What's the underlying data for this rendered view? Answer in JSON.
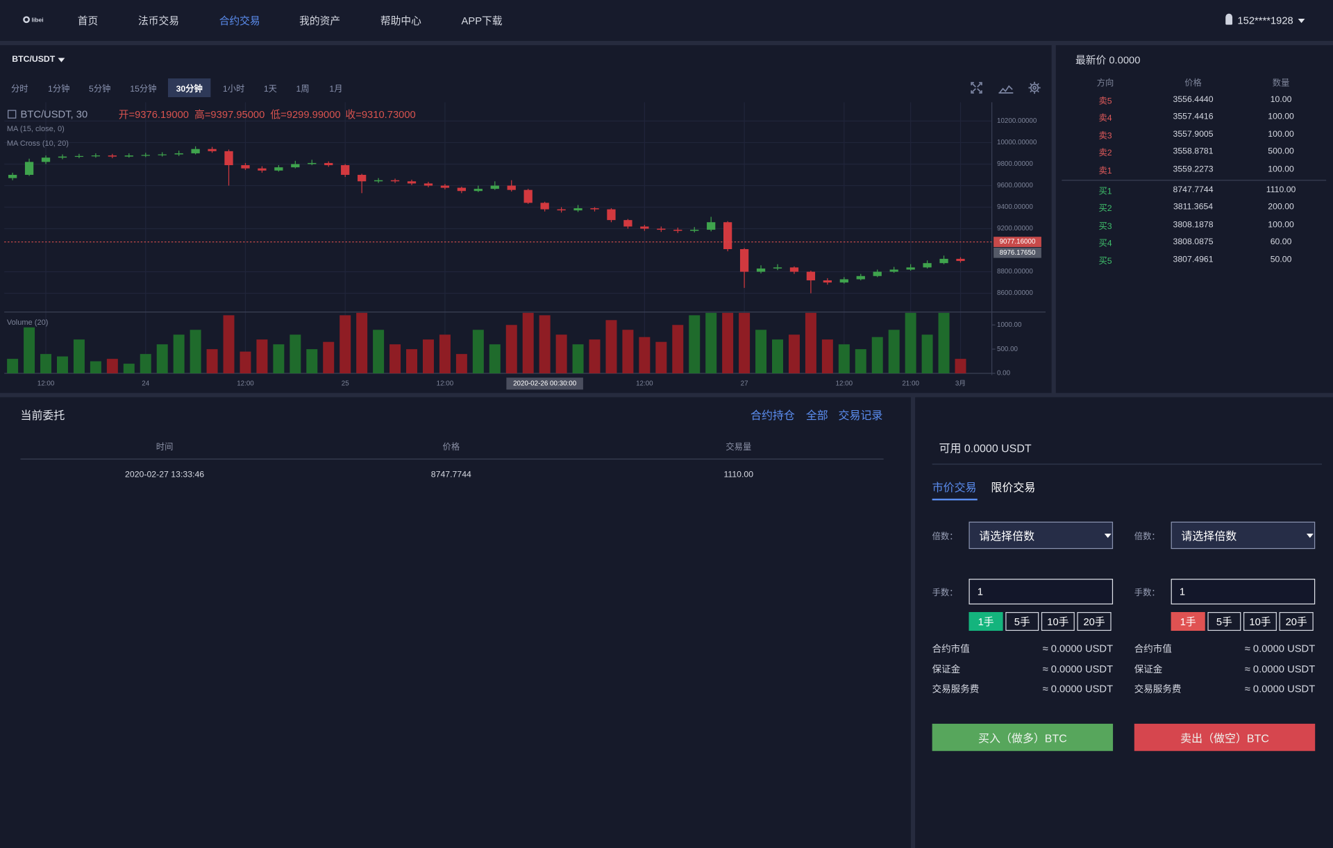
{
  "nav": {
    "logo": "libei",
    "items": [
      "首页",
      "法币交易",
      "合约交易",
      "我的资产",
      "帮助中心",
      "APP下载"
    ],
    "active": 2,
    "user": "152****1928"
  },
  "chart": {
    "pair": "BTC/USDT",
    "intervals": [
      "分时",
      "1分钟",
      "5分钟",
      "15分钟",
      "30分钟",
      "1小时",
      "1天",
      "1周",
      "1月"
    ],
    "active_interval": 4,
    "legend_title": "BTC/USDT, 30",
    "ohlc": [
      "开=9376.19000",
      "高=9397.95000",
      "低=9299.99000",
      "收=9310.73000"
    ],
    "indicators": [
      "MA (15, close, 0)",
      "MA Cross (10, 20)"
    ],
    "volume_label": "Volume (20)",
    "crosshair_label": "2020-02-26 00:30:00"
  },
  "chart_data": {
    "type": "candlestick",
    "grid": true,
    "categories": [
      null,
      null,
      "12:00",
      null,
      null,
      null,
      null,
      null,
      "24",
      null,
      null,
      null,
      null,
      null,
      "12:00",
      null,
      null,
      null,
      null,
      null,
      "25",
      null,
      null,
      null,
      null,
      null,
      "12:00",
      null,
      null,
      null,
      null,
      null,
      null,
      null,
      null,
      null,
      null,
      null,
      "12:00",
      null,
      null,
      null,
      null,
      null,
      "27",
      null,
      null,
      null,
      null,
      null,
      "12:00",
      null,
      null,
      null,
      "21:00",
      null,
      null,
      "3月"
    ],
    "open": [
      9670,
      9700,
      9820,
      9860,
      9870,
      9875,
      9880,
      9870,
      9880,
      9885,
      9890,
      9900,
      9940,
      9920,
      9790,
      9760,
      9740,
      9770,
      9800,
      9810,
      9790,
      9700,
      9640,
      9650,
      9640,
      9620,
      9600,
      9580,
      9550,
      9570,
      9600,
      9560,
      9440,
      9380,
      9370,
      9390,
      9380,
      9280,
      9220,
      9200,
      9190,
      9180,
      9190,
      9260,
      9010,
      8800,
      8830,
      8840,
      8800,
      8720,
      8700,
      8730,
      8760,
      8800,
      8820,
      8840,
      8880,
      8920
    ],
    "high": [
      9720,
      9850,
      9880,
      9890,
      9895,
      9900,
      9895,
      9900,
      9905,
      9910,
      9925,
      9965,
      9960,
      9935,
      9810,
      9780,
      9790,
      9830,
      9840,
      9825,
      9800,
      9710,
      9670,
      9665,
      9655,
      9635,
      9615,
      9590,
      9600,
      9640,
      9650,
      9570,
      9450,
      9400,
      9420,
      9400,
      9390,
      9290,
      9235,
      9220,
      9210,
      9215,
      9310,
      9270,
      9020,
      8860,
      8870,
      8850,
      8810,
      8740,
      8750,
      8780,
      8820,
      8845,
      8870,
      8905,
      8950,
      8935
    ],
    "low": [
      9650,
      9690,
      9800,
      9845,
      9855,
      9860,
      9855,
      9860,
      9865,
      9870,
      9875,
      9890,
      9905,
      9600,
      9745,
      9720,
      9730,
      9760,
      9790,
      9775,
      9680,
      9530,
      9625,
      9625,
      9605,
      9585,
      9565,
      9530,
      9540,
      9560,
      9545,
      9430,
      9360,
      9350,
      9355,
      9360,
      9260,
      9200,
      9180,
      9170,
      9160,
      9165,
      9175,
      8990,
      8650,
      8785,
      8815,
      8780,
      8600,
      8680,
      8690,
      8720,
      8750,
      8790,
      8810,
      8830,
      8870,
      8885
    ],
    "close": [
      9700,
      9820,
      9860,
      9870,
      9875,
      9880,
      9870,
      9880,
      9885,
      9890,
      9900,
      9940,
      9920,
      9790,
      9760,
      9740,
      9770,
      9800,
      9810,
      9790,
      9700,
      9640,
      9650,
      9640,
      9620,
      9600,
      9580,
      9550,
      9570,
      9600,
      9560,
      9440,
      9380,
      9370,
      9390,
      9380,
      9280,
      9220,
      9200,
      9190,
      9180,
      9190,
      9260,
      9010,
      8800,
      8830,
      8840,
      8800,
      8720,
      8700,
      8730,
      8760,
      8800,
      8820,
      8840,
      8880,
      8920,
      8900
    ],
    "volume": [
      300,
      950,
      400,
      350,
      700,
      250,
      300,
      200,
      400,
      600,
      800,
      900,
      500,
      1200,
      450,
      700,
      600,
      800,
      500,
      650,
      1200,
      1250,
      900,
      600,
      500,
      700,
      800,
      400,
      900,
      600,
      1000,
      1250,
      1200,
      800,
      600,
      700,
      1100,
      900,
      750,
      650,
      1000,
      1200,
      1250,
      1250,
      1250,
      900,
      700,
      800,
      1250,
      700,
      600,
      500,
      750,
      900,
      1250,
      800,
      1250,
      300
    ],
    "up_color": "#3fa34d",
    "down_color": "#d2393f",
    "volume_up_color": "#1f6b2c",
    "volume_down_color": "#8f1d24",
    "ylim": [
      8426,
      10374
    ],
    "yticks": [
      {
        "value": 10200,
        "label": "10200.00000"
      },
      {
        "value": 10000,
        "label": "10000.00000"
      },
      {
        "value": 9800,
        "label": "9800.00000"
      },
      {
        "value": 9600,
        "label": "9600.00000"
      },
      {
        "value": 9400,
        "label": "9400.00000"
      },
      {
        "value": 9200,
        "label": "9200.00000"
      },
      {
        "value": 8800,
        "label": "8800.00000"
      },
      {
        "value": 8600,
        "label": "8600.00000"
      }
    ],
    "volume_ylim": [
      0,
      1250
    ],
    "volume_yticks": [
      {
        "value": 1000,
        "label": "1000.00"
      },
      {
        "value": 500,
        "label": "500.00"
      },
      {
        "value": 0,
        "label": "0.00"
      }
    ],
    "last_price": {
      "value": 9077.16,
      "label": "9077.16000"
    },
    "cursor_price": {
      "value": 8976.1765,
      "label": "8976.17650"
    }
  },
  "order_book": {
    "title": "最新价 0.0000",
    "headers": [
      "方向",
      "价格",
      "数量"
    ],
    "asks": [
      [
        "卖5",
        "3556.4440",
        "10.00"
      ],
      [
        "卖4",
        "3557.4416",
        "100.00"
      ],
      [
        "卖3",
        "3557.9005",
        "100.00"
      ],
      [
        "卖2",
        "3558.8781",
        "500.00"
      ],
      [
        "卖1",
        "3559.2273",
        "100.00"
      ]
    ],
    "bids": [
      [
        "买1",
        "8747.7744",
        "1110.00"
      ],
      [
        "买2",
        "3811.3654",
        "200.00"
      ],
      [
        "买3",
        "3808.1878",
        "100.00"
      ],
      [
        "买4",
        "3808.0875",
        "60.00"
      ],
      [
        "买5",
        "3807.4961",
        "50.00"
      ]
    ]
  },
  "orders": {
    "title": "当前委托",
    "links": [
      "合约持仓",
      "全部",
      "交易记录"
    ],
    "headers": [
      "时间",
      "价格",
      "交易量"
    ],
    "rows": [
      [
        "2020-02-27 13:33:46",
        "8747.7744",
        "1110.00"
      ]
    ]
  },
  "trade": {
    "available": "可用 0.0000 USDT",
    "tabs": [
      "市价交易",
      "限价交易"
    ],
    "active_tab": 0,
    "columns": [
      {
        "leverage_label": "倍数：",
        "leverage_placeholder": "请选择倍数",
        "lots_label": "手数：",
        "lots_value": "1",
        "lot_buttons": [
          "1手",
          "5手",
          "10手",
          "20手"
        ],
        "info": [
          [
            "合约市值",
            "≈ 0.0000 USDT"
          ],
          [
            "保证金",
            "≈ 0.0000 USDT"
          ],
          [
            "交易服务费",
            "≈ 0.0000 USDT"
          ]
        ],
        "action": "买入（做多）BTC",
        "accent": "#14b47d",
        "button_color": "#57a65c"
      },
      {
        "leverage_label": "倍数：",
        "leverage_placeholder": "请选择倍数",
        "lots_label": "手数：",
        "lots_value": "1",
        "lot_buttons": [
          "1手",
          "5手",
          "10手",
          "20手"
        ],
        "info": [
          [
            "合约市值",
            "≈ 0.0000 USDT"
          ],
          [
            "保证金",
            "≈ 0.0000 USDT"
          ],
          [
            "交易服务费",
            "≈ 0.0000 USDT"
          ]
        ],
        "action": "卖出（做空）BTC",
        "accent": "#e05252",
        "button_color": "#d6464e"
      }
    ]
  }
}
